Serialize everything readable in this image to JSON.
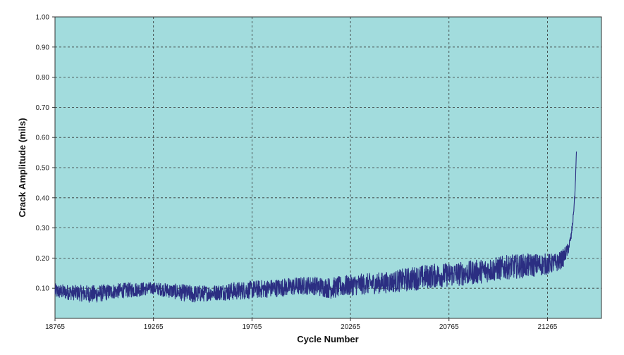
{
  "chart_data": {
    "type": "line",
    "title": "",
    "xlabel": "Cycle Number",
    "ylabel": "Crack Amplitude (mils)",
    "xlim": [
      18765,
      21539
    ],
    "ylim": [
      0.0,
      1.0
    ],
    "xticks": [
      18765,
      19265,
      19765,
      20265,
      20765,
      21265
    ],
    "yticks": [
      0.1,
      0.2,
      0.3,
      0.4,
      0.5,
      0.6,
      0.7,
      0.8,
      0.9,
      1.0
    ],
    "xtick_labels": [
      "18765",
      "19265",
      "19765",
      "20265",
      "20765",
      "21265"
    ],
    "ytick_labels": [
      "0.10",
      "0.20",
      "0.30",
      "0.40",
      "0.50",
      "0.60",
      "0.70",
      "0.80",
      "0.90",
      "1.00"
    ],
    "grid": true,
    "background_color": "#a2dcdd",
    "series": [
      {
        "color": "#2b2e82",
        "x": [
          18765,
          18865,
          18965,
          19065,
          19165,
          19265,
          19365,
          19465,
          19565,
          19665,
          19765,
          19865,
          19965,
          20065,
          20165,
          20265,
          20365,
          20465,
          20565,
          20665,
          20765,
          20865,
          20965,
          21065,
          21165,
          21265,
          21315,
          21345,
          21370,
          21385,
          21395,
          21405,
          21412
        ],
        "y": [
          0.09,
          0.085,
          0.08,
          0.09,
          0.095,
          0.1,
          0.09,
          0.08,
          0.085,
          0.09,
          0.095,
          0.1,
          0.105,
          0.11,
          0.1,
          0.11,
          0.115,
          0.12,
          0.13,
          0.14,
          0.145,
          0.15,
          0.16,
          0.17,
          0.175,
          0.18,
          0.185,
          0.2,
          0.23,
          0.27,
          0.33,
          0.42,
          0.55
        ],
        "band": [
          0.025,
          0.025,
          0.03,
          0.025,
          0.025,
          0.02,
          0.025,
          0.03,
          0.025,
          0.03,
          0.03,
          0.03,
          0.03,
          0.03,
          0.035,
          0.035,
          0.035,
          0.035,
          0.04,
          0.04,
          0.04,
          0.04,
          0.04,
          0.04,
          0.04,
          0.035,
          0.03,
          0.03,
          0.02,
          0.015,
          0.012,
          0.01,
          0.005
        ]
      }
    ]
  }
}
